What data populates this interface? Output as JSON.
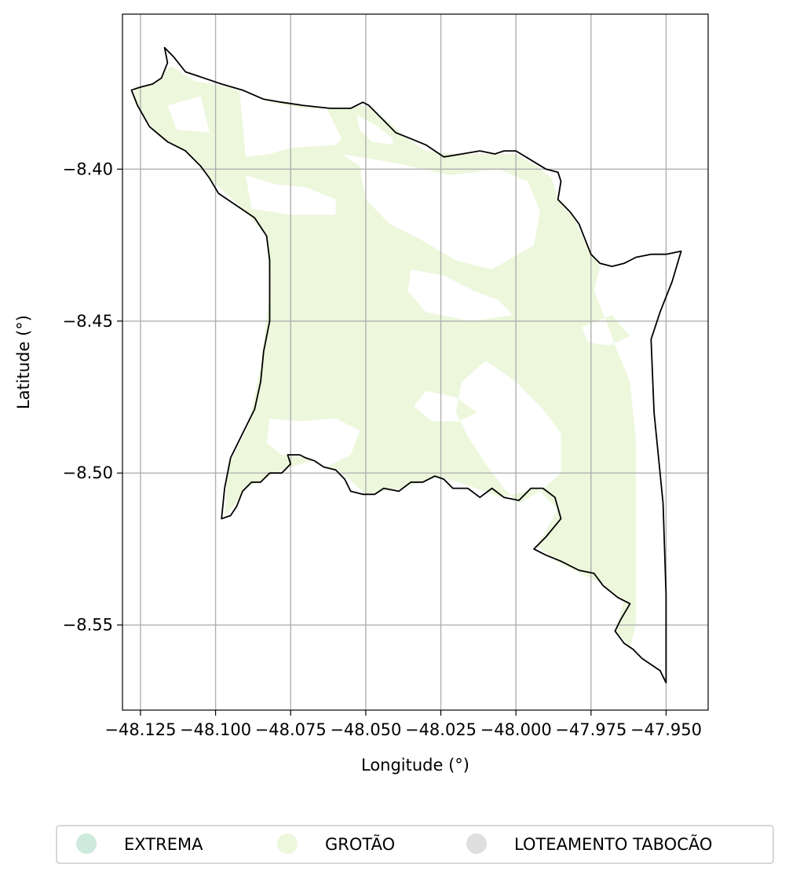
{
  "chart_data": {
    "type": "map",
    "xlabel": "Longitude (°)",
    "ylabel": "Latitude (°)",
    "xlim": [
      -48.131,
      -47.936
    ],
    "ylim": [
      -8.578,
      -8.349
    ],
    "xticks": [
      -48.125,
      -48.1,
      -48.075,
      -48.05,
      -48.025,
      -48.0,
      -47.975,
      -47.95
    ],
    "xtick_labels": [
      "−48.125",
      "−48.100",
      "−48.075",
      "−48.050",
      "−48.025",
      "−48.000",
      "−47.975",
      "−47.950"
    ],
    "yticks": [
      -8.4,
      -8.45,
      -8.5,
      -8.55
    ],
    "ytick_labels": [
      "−8.40",
      "−8.45",
      "−8.50",
      "−8.55"
    ],
    "grid": true,
    "legend_position": "bottom",
    "legend": [
      {
        "label": "EXTREMA",
        "color": "#cdeadd"
      },
      {
        "label": "GROTÃO",
        "color": "#edf7dc"
      },
      {
        "label": "LOTEAMENTO TABOCÃO",
        "color": "#dfdfdf"
      }
    ],
    "boundary": [
      [
        -48.117,
        -8.36
      ],
      [
        -48.114,
        -8.363
      ],
      [
        -48.11,
        -8.368
      ],
      [
        -48.104,
        -8.37
      ],
      [
        -48.098,
        -8.372
      ],
      [
        -48.091,
        -8.374
      ],
      [
        -48.084,
        -8.377
      ],
      [
        -48.078,
        -8.378
      ],
      [
        -48.071,
        -8.379
      ],
      [
        -48.062,
        -8.38
      ],
      [
        -48.055,
        -8.38
      ],
      [
        -48.051,
        -8.378
      ],
      [
        -48.049,
        -8.379
      ],
      [
        -48.045,
        -8.383
      ],
      [
        -48.04,
        -8.388
      ],
      [
        -48.035,
        -8.39
      ],
      [
        -48.03,
        -8.392
      ],
      [
        -48.024,
        -8.396
      ],
      [
        -48.018,
        -8.395
      ],
      [
        -48.012,
        -8.394
      ],
      [
        -48.007,
        -8.395
      ],
      [
        -48.004,
        -8.394
      ],
      [
        -48.0,
        -8.394
      ],
      [
        -47.995,
        -8.397
      ],
      [
        -47.99,
        -8.4
      ],
      [
        -47.986,
        -8.401
      ],
      [
        -47.985,
        -8.404
      ],
      [
        -47.986,
        -8.41
      ],
      [
        -47.982,
        -8.414
      ],
      [
        -47.979,
        -8.418
      ],
      [
        -47.977,
        -8.423
      ],
      [
        -47.975,
        -8.428
      ],
      [
        -47.972,
        -8.431
      ],
      [
        -47.968,
        -8.432
      ],
      [
        -47.964,
        -8.431
      ],
      [
        -47.96,
        -8.429
      ],
      [
        -47.955,
        -8.428
      ],
      [
        -47.95,
        -8.428
      ],
      [
        -47.945,
        -8.427
      ],
      [
        -47.948,
        -8.437
      ],
      [
        -47.952,
        -8.447
      ],
      [
        -47.955,
        -8.456
      ],
      [
        -47.954,
        -8.48
      ],
      [
        -47.951,
        -8.51
      ],
      [
        -47.95,
        -8.54
      ],
      [
        -47.95,
        -8.569
      ],
      [
        -47.952,
        -8.565
      ],
      [
        -47.955,
        -8.563
      ],
      [
        -47.958,
        -8.561
      ],
      [
        -47.961,
        -8.558
      ],
      [
        -47.964,
        -8.556
      ],
      [
        -47.967,
        -8.552
      ],
      [
        -47.965,
        -8.548
      ],
      [
        -47.962,
        -8.543
      ],
      [
        -47.966,
        -8.541
      ],
      [
        -47.971,
        -8.537
      ],
      [
        -47.974,
        -8.533
      ],
      [
        -47.979,
        -8.532
      ],
      [
        -47.985,
        -8.529
      ],
      [
        -47.99,
        -8.527
      ],
      [
        -47.994,
        -8.525
      ],
      [
        -47.99,
        -8.521
      ],
      [
        -47.985,
        -8.515
      ],
      [
        -47.987,
        -8.508
      ],
      [
        -47.991,
        -8.505
      ],
      [
        -47.995,
        -8.505
      ],
      [
        -47.999,
        -8.509
      ],
      [
        -48.004,
        -8.508
      ],
      [
        -48.008,
        -8.505
      ],
      [
        -48.012,
        -8.508
      ],
      [
        -48.016,
        -8.505
      ],
      [
        -48.021,
        -8.505
      ],
      [
        -48.024,
        -8.502
      ],
      [
        -48.027,
        -8.501
      ],
      [
        -48.031,
        -8.503
      ],
      [
        -48.035,
        -8.503
      ],
      [
        -48.039,
        -8.506
      ],
      [
        -48.044,
        -8.505
      ],
      [
        -48.047,
        -8.507
      ],
      [
        -48.051,
        -8.507
      ],
      [
        -48.055,
        -8.506
      ],
      [
        -48.057,
        -8.502
      ],
      [
        -48.06,
        -8.499
      ],
      [
        -48.064,
        -8.498
      ],
      [
        -48.067,
        -8.496
      ],
      [
        -48.07,
        -8.495
      ],
      [
        -48.072,
        -8.494
      ],
      [
        -48.076,
        -8.494
      ],
      [
        -48.075,
        -8.497
      ],
      [
        -48.078,
        -8.5
      ],
      [
        -48.082,
        -8.5
      ],
      [
        -48.085,
        -8.503
      ],
      [
        -48.088,
        -8.503
      ],
      [
        -48.091,
        -8.506
      ],
      [
        -48.093,
        -8.511
      ],
      [
        -48.095,
        -8.514
      ],
      [
        -48.098,
        -8.515
      ],
      [
        -48.097,
        -8.505
      ],
      [
        -48.095,
        -8.495
      ],
      [
        -48.091,
        -8.487
      ],
      [
        -48.087,
        -8.479
      ],
      [
        -48.085,
        -8.47
      ],
      [
        -48.084,
        -8.46
      ],
      [
        -48.082,
        -8.45
      ],
      [
        -48.082,
        -8.44
      ],
      [
        -48.082,
        -8.43
      ],
      [
        -48.083,
        -8.422
      ],
      [
        -48.087,
        -8.416
      ],
      [
        -48.093,
        -8.412
      ],
      [
        -48.099,
        -8.408
      ],
      [
        -48.102,
        -8.403
      ],
      [
        -48.105,
        -8.399
      ],
      [
        -48.11,
        -8.394
      ],
      [
        -48.116,
        -8.391
      ],
      [
        -48.122,
        -8.386
      ],
      [
        -48.126,
        -8.379
      ],
      [
        -48.128,
        -8.374
      ],
      [
        -48.125,
        -8.373
      ],
      [
        -48.121,
        -8.372
      ],
      [
        -48.118,
        -8.37
      ],
      [
        -48.116,
        -8.365
      ],
      [
        -48.117,
        -8.36
      ]
    ],
    "grotao_fill": [
      [
        -48.127,
        -8.373
      ],
      [
        -48.12,
        -8.372
      ],
      [
        -48.115,
        -8.366
      ],
      [
        -48.107,
        -8.371
      ],
      [
        -48.096,
        -8.373
      ],
      [
        -48.083,
        -8.377
      ],
      [
        -48.07,
        -8.379
      ],
      [
        -48.058,
        -8.38
      ],
      [
        -48.05,
        -8.379
      ],
      [
        -48.043,
        -8.384
      ],
      [
        -48.036,
        -8.39
      ],
      [
        -48.03,
        -8.394
      ],
      [
        -48.02,
        -8.395
      ],
      [
        -48.008,
        -8.395
      ],
      [
        -48.0,
        -8.395
      ],
      [
        -47.993,
        -8.399
      ],
      [
        -47.988,
        -8.403
      ],
      [
        -47.986,
        -8.41
      ],
      [
        -47.981,
        -8.415
      ],
      [
        -47.977,
        -8.424
      ],
      [
        -47.972,
        -8.432
      ],
      [
        -47.974,
        -8.44
      ],
      [
        -47.97,
        -8.45
      ],
      [
        -47.967,
        -8.458
      ],
      [
        -47.962,
        -8.47
      ],
      [
        -47.96,
        -8.49
      ],
      [
        -47.96,
        -8.52
      ],
      [
        -47.96,
        -8.55
      ],
      [
        -47.962,
        -8.557
      ],
      [
        -47.967,
        -8.552
      ],
      [
        -47.964,
        -8.542
      ],
      [
        -47.972,
        -8.536
      ],
      [
        -47.985,
        -8.53
      ],
      [
        -47.993,
        -8.524
      ],
      [
        -47.986,
        -8.512
      ],
      [
        -47.993,
        -8.505
      ],
      [
        -48.005,
        -8.508
      ],
      [
        -48.016,
        -8.504
      ],
      [
        -48.026,
        -8.501
      ],
      [
        -48.038,
        -8.505
      ],
      [
        -48.05,
        -8.507
      ],
      [
        -48.058,
        -8.5
      ],
      [
        -48.068,
        -8.496
      ],
      [
        -48.078,
        -8.499
      ],
      [
        -48.09,
        -8.505
      ],
      [
        -48.097,
        -8.515
      ],
      [
        -48.096,
        -8.498
      ],
      [
        -48.089,
        -8.484
      ],
      [
        -48.085,
        -8.465
      ],
      [
        -48.082,
        -8.44
      ],
      [
        -48.083,
        -8.422
      ],
      [
        -48.091,
        -8.413
      ],
      [
        -48.101,
        -8.404
      ],
      [
        -48.109,
        -8.395
      ],
      [
        -48.12,
        -8.388
      ],
      [
        -48.127,
        -8.378
      ]
    ],
    "voids": [
      [
        [
          -48.116,
          -8.379
        ],
        [
          -48.105,
          -8.376
        ],
        [
          -48.102,
          -8.388
        ],
        [
          -48.113,
          -8.387
        ]
      ],
      [
        [
          -48.092,
          -8.374
        ],
        [
          -48.082,
          -8.378
        ],
        [
          -48.071,
          -8.38
        ],
        [
          -48.063,
          -8.38
        ],
        [
          -48.058,
          -8.39
        ],
        [
          -48.06,
          -8.392
        ],
        [
          -48.075,
          -8.393
        ],
        [
          -48.082,
          -8.395
        ],
        [
          -48.09,
          -8.396
        ]
      ],
      [
        [
          -48.053,
          -8.382
        ],
        [
          -48.046,
          -8.386
        ],
        [
          -48.041,
          -8.39
        ],
        [
          -48.041,
          -8.392
        ],
        [
          -48.048,
          -8.391
        ],
        [
          -48.052,
          -8.387
        ]
      ],
      [
        [
          -48.058,
          -8.395
        ],
        [
          -48.052,
          -8.399
        ],
        [
          -48.05,
          -8.41
        ],
        [
          -48.042,
          -8.418
        ],
        [
          -48.032,
          -8.423
        ],
        [
          -48.02,
          -8.43
        ],
        [
          -48.008,
          -8.433
        ],
        [
          -47.994,
          -8.425
        ],
        [
          -47.992,
          -8.414
        ],
        [
          -47.996,
          -8.404
        ],
        [
          -48.006,
          -8.4
        ],
        [
          -48.022,
          -8.402
        ],
        [
          -48.04,
          -8.398
        ]
      ],
      [
        [
          -48.09,
          -8.402
        ],
        [
          -48.08,
          -8.405
        ],
        [
          -48.07,
          -8.406
        ],
        [
          -48.06,
          -8.41
        ],
        [
          -48.06,
          -8.415
        ],
        [
          -48.075,
          -8.415
        ],
        [
          -48.088,
          -8.413
        ]
      ],
      [
        [
          -48.035,
          -8.433
        ],
        [
          -48.024,
          -8.435
        ],
        [
          -48.014,
          -8.44
        ],
        [
          -48.006,
          -8.443
        ],
        [
          -48.001,
          -8.448
        ],
        [
          -48.015,
          -8.45
        ],
        [
          -48.03,
          -8.447
        ],
        [
          -48.036,
          -8.44
        ]
      ],
      [
        [
          -47.978,
          -8.452
        ],
        [
          -47.968,
          -8.448
        ],
        [
          -47.962,
          -8.455
        ],
        [
          -47.969,
          -8.458
        ],
        [
          -47.976,
          -8.457
        ]
      ],
      [
        [
          -48.01,
          -8.463
        ],
        [
          -48.0,
          -8.47
        ],
        [
          -47.991,
          -8.479
        ],
        [
          -47.985,
          -8.487
        ],
        [
          -47.985,
          -8.5
        ],
        [
          -47.992,
          -8.506
        ],
        [
          -47.999,
          -8.51
        ],
        [
          -48.004,
          -8.505
        ],
        [
          -48.01,
          -8.497
        ],
        [
          -48.016,
          -8.488
        ],
        [
          -48.02,
          -8.48
        ],
        [
          -48.018,
          -8.47
        ]
      ],
      [
        [
          -48.082,
          -8.482
        ],
        [
          -48.072,
          -8.483
        ],
        [
          -48.06,
          -8.482
        ],
        [
          -48.052,
          -8.486
        ],
        [
          -48.055,
          -8.494
        ],
        [
          -48.063,
          -8.498
        ],
        [
          -48.07,
          -8.495
        ],
        [
          -48.078,
          -8.494
        ],
        [
          -48.083,
          -8.49
        ]
      ],
      [
        [
          -48.03,
          -8.473
        ],
        [
          -48.02,
          -8.475
        ],
        [
          -48.013,
          -8.48
        ],
        [
          -48.019,
          -8.483
        ],
        [
          -48.028,
          -8.483
        ],
        [
          -48.034,
          -8.478
        ]
      ]
    ]
  }
}
